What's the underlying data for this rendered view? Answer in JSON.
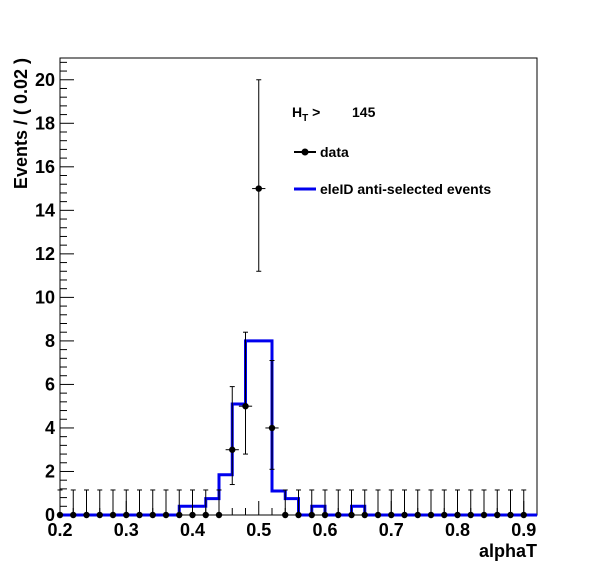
{
  "chart_data": {
    "type": "histogram",
    "xlabel": "alphaT",
    "ylabel": "Events / ( 0.02 )",
    "xlim": [
      0.2,
      0.92
    ],
    "ylim": [
      0,
      21
    ],
    "x_ticks": [
      "0.2",
      "0.3",
      "0.4",
      "0.5",
      "0.6",
      "0.7",
      "0.8",
      "0.9"
    ],
    "y_ticks": [
      "0",
      "2",
      "4",
      "6",
      "8",
      "10",
      "12",
      "14",
      "16",
      "18",
      "20"
    ],
    "x_tick_values": [
      0.2,
      0.3,
      0.4,
      0.5,
      0.6,
      0.7,
      0.8,
      0.9
    ],
    "y_tick_values": [
      0,
      2,
      4,
      6,
      8,
      10,
      12,
      14,
      16,
      18,
      20
    ],
    "legend": {
      "header_main": "H",
      "header_sub": "T",
      "header_rest": " > ",
      "header_value": "145",
      "entries": [
        {
          "label": "data",
          "style": "marker"
        },
        {
          "label": "eleID anti-selected events",
          "style": "line"
        }
      ]
    },
    "series": [
      {
        "name": "data",
        "type": "points",
        "color": "#000000",
        "bin_width": 0.02,
        "x": [
          0.2,
          0.22,
          0.24,
          0.26,
          0.28,
          0.3,
          0.32,
          0.34,
          0.36,
          0.38,
          0.4,
          0.42,
          0.44,
          0.46,
          0.48,
          0.5,
          0.52,
          0.54,
          0.56,
          0.58,
          0.6,
          0.62,
          0.64,
          0.66,
          0.68,
          0.7,
          0.72,
          0.74,
          0.76,
          0.78,
          0.8,
          0.82,
          0.84,
          0.86,
          0.88,
          0.9
        ],
        "y": [
          0,
          0,
          0,
          0,
          0,
          0,
          0,
          0,
          0,
          0,
          0,
          0,
          0,
          3,
          5,
          15,
          4,
          0,
          0,
          0,
          0,
          0,
          0,
          0,
          0,
          0,
          0,
          0,
          0,
          0,
          0,
          0,
          0,
          0,
          0,
          0
        ],
        "err_low": [
          0,
          0,
          0,
          0,
          0,
          0,
          0,
          0,
          0,
          0,
          0,
          0,
          0,
          1.6,
          2.2,
          3.8,
          1.9,
          0,
          0,
          0,
          0,
          0,
          0,
          0,
          0,
          0,
          0,
          0,
          0,
          0,
          0,
          0,
          0,
          0,
          0,
          0
        ],
        "err_high": [
          1.15,
          1.15,
          1.15,
          1.15,
          1.15,
          1.15,
          1.15,
          1.15,
          1.15,
          1.15,
          1.15,
          1.15,
          1.15,
          2.9,
          3.4,
          5.0,
          3.1,
          1.15,
          1.15,
          1.15,
          1.15,
          1.15,
          1.15,
          1.15,
          1.15,
          1.15,
          1.15,
          1.15,
          1.15,
          1.15,
          1.15,
          1.15,
          1.15,
          1.15,
          1.15,
          1.15
        ]
      },
      {
        "name": "eleID anti-selected events",
        "type": "step",
        "color": "#0000ee",
        "bin_edges": [
          0.2,
          0.38,
          0.42,
          0.44,
          0.46,
          0.48,
          0.5,
          0.52,
          0.54,
          0.56,
          0.58,
          0.6,
          0.64,
          0.66,
          0.92
        ],
        "values": [
          0,
          0.4,
          0.75,
          1.85,
          5.1,
          8.0,
          8.0,
          1.1,
          0.75,
          0,
          0.4,
          0,
          0.4,
          0
        ]
      }
    ]
  }
}
